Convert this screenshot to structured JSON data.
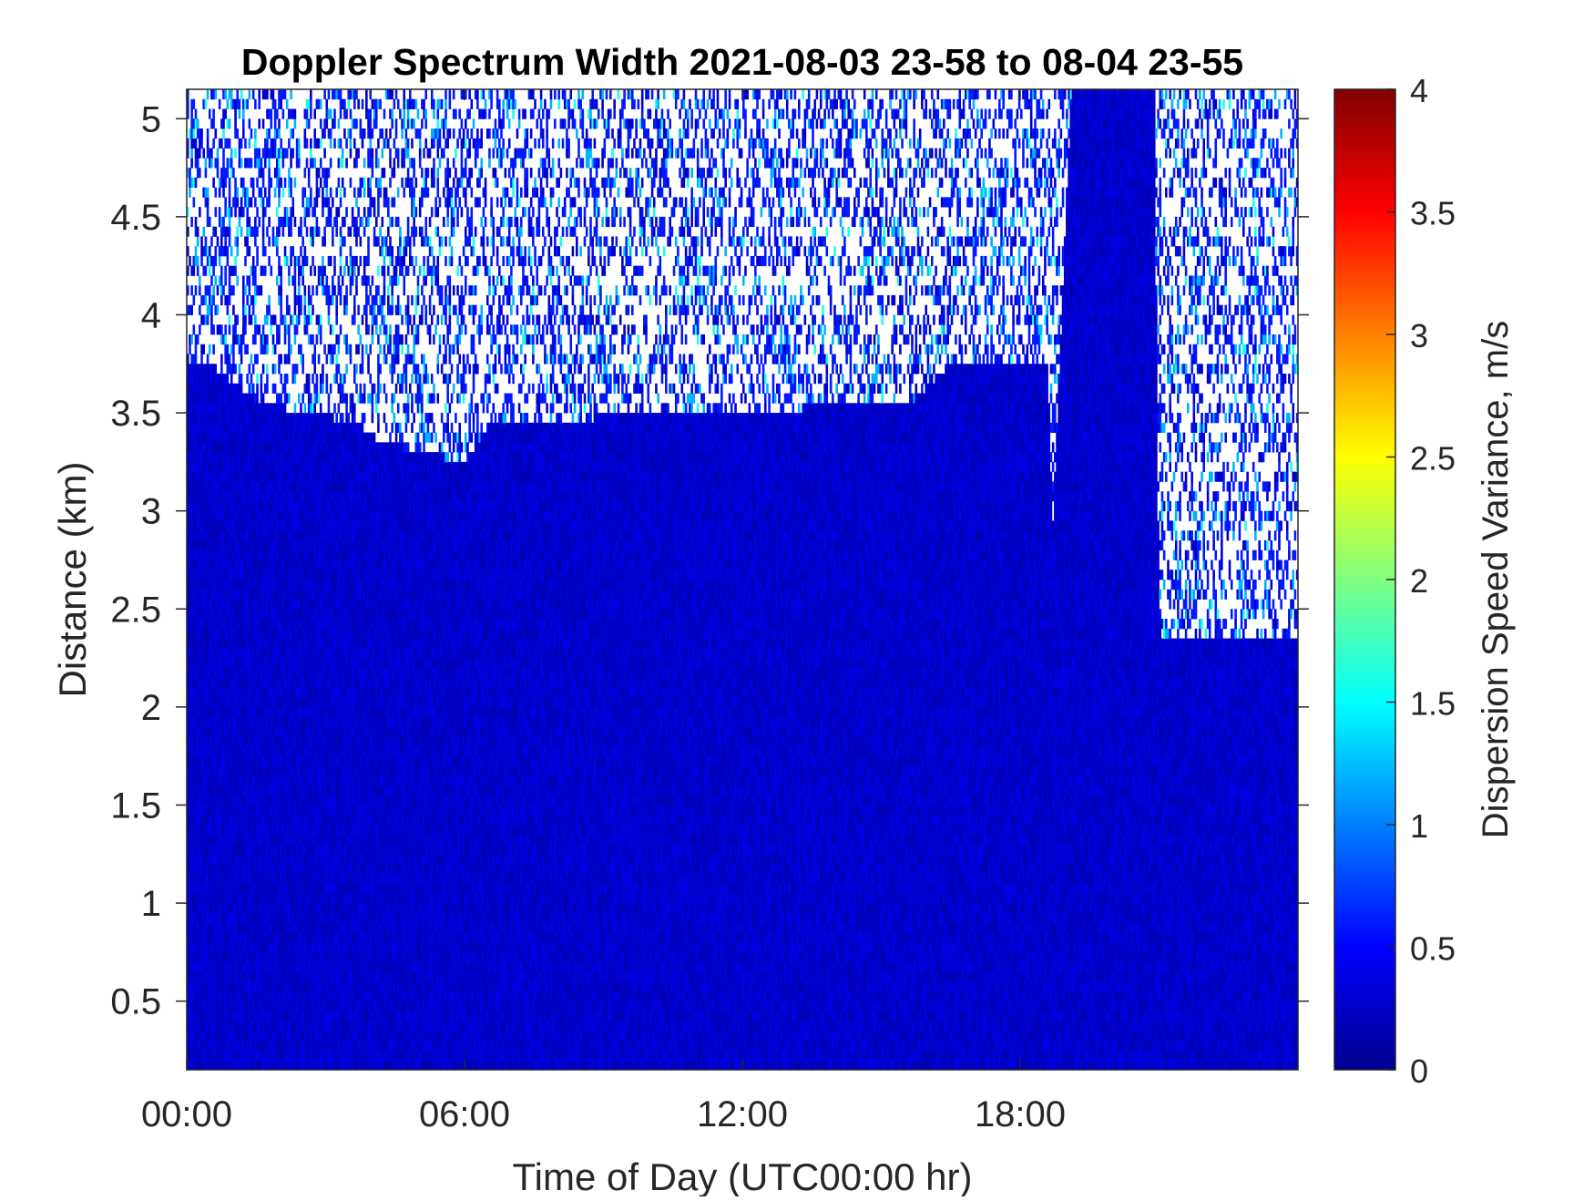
{
  "chart_data": {
    "type": "heatmap",
    "title": "Doppler Spectrum Width 2021-08-03 23-58 to 08-04 23-55",
    "xlabel": "Time of Day (UTC00:00 hr)",
    "ylabel": "Distance (km)",
    "colorbar_label": "Dispersion Speed Variance, m/s",
    "colormap": "jet",
    "xlim": [
      0,
      24
    ],
    "ylim": [
      0.15,
      5.15
    ],
    "clim": [
      0,
      4
    ],
    "x_ticks": [
      {
        "value": 0,
        "label": "00:00"
      },
      {
        "value": 6,
        "label": "06:00"
      },
      {
        "value": 12,
        "label": "12:00"
      },
      {
        "value": 18,
        "label": "18:00"
      }
    ],
    "y_ticks": [
      {
        "value": 0.5,
        "label": "0.5"
      },
      {
        "value": 1,
        "label": "1"
      },
      {
        "value": 1.5,
        "label": "1.5"
      },
      {
        "value": 2,
        "label": "2"
      },
      {
        "value": 2.5,
        "label": "2.5"
      },
      {
        "value": 3,
        "label": "3"
      },
      {
        "value": 3.5,
        "label": "3.5"
      },
      {
        "value": 4,
        "label": "4"
      },
      {
        "value": 4.5,
        "label": "4.5"
      },
      {
        "value": 5,
        "label": "5"
      }
    ],
    "colorbar_ticks": [
      {
        "value": 0,
        "label": "0"
      },
      {
        "value": 0.5,
        "label": "0.5"
      },
      {
        "value": 1,
        "label": "1"
      },
      {
        "value": 1.5,
        "label": "1.5"
      },
      {
        "value": 2,
        "label": "2"
      },
      {
        "value": 2.5,
        "label": "2.5"
      },
      {
        "value": 3,
        "label": "3"
      },
      {
        "value": 3.5,
        "label": "3.5"
      },
      {
        "value": 4,
        "label": "4"
      }
    ],
    "data_top_km": [
      {
        "time_hr": 0,
        "top_km": 3.75
      },
      {
        "time_hr": 0.5,
        "top_km": 3.75
      },
      {
        "time_hr": 1.6,
        "top_km": 3.55
      },
      {
        "time_hr": 3.7,
        "top_km": 3.45
      },
      {
        "time_hr": 4.2,
        "top_km": 3.35
      },
      {
        "time_hr": 6.0,
        "top_km": 3.25
      },
      {
        "time_hr": 6.6,
        "top_km": 3.45
      },
      {
        "time_hr": 15.6,
        "top_km": 3.55
      },
      {
        "time_hr": 16.5,
        "top_km": 3.75
      },
      {
        "time_hr": 18.6,
        "top_km": 3.75
      },
      {
        "time_hr": 18.7,
        "top_km": 2.9
      },
      {
        "time_hr": 19.1,
        "top_km": 5.15
      },
      {
        "time_hr": 20.9,
        "top_km": 5.15
      },
      {
        "time_hr": 21.0,
        "top_km": 2.35
      },
      {
        "time_hr": 24.0,
        "top_km": 2.35
      }
    ],
    "typical_value_ms": 0.3,
    "sparse_region_values_ms": [
      0,
      0.6,
      1.2,
      1.6
    ],
    "background": "#ffffff",
    "axis_color": "#262626"
  }
}
